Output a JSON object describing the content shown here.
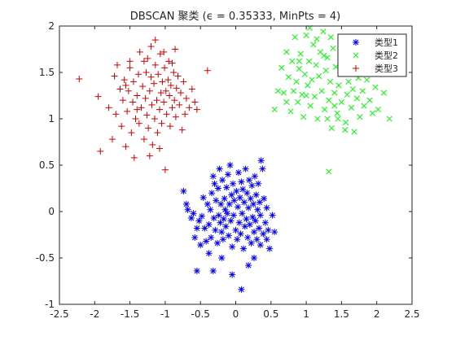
{
  "chart_data": {
    "type": "scatter",
    "title": "DBSCAN 聚类 (ϵ = 0.35333, MinPts = 4)",
    "xlabel": "",
    "ylabel": "",
    "xlim": [
      -2.5,
      2.5
    ],
    "ylim": [
      -1,
      2
    ],
    "xticks": [
      -2.5,
      -2,
      -1.5,
      -1,
      -0.5,
      0,
      0.5,
      1,
      1.5,
      2,
      2.5
    ],
    "xtick_labels": [
      "-2.5",
      "-2",
      "-1.5",
      "-1",
      "-0.5",
      "0",
      "0.5",
      "1",
      "1.5",
      "2",
      "2.5"
    ],
    "yticks": [
      -1,
      -0.5,
      0,
      0.5,
      1,
      1.5,
      2
    ],
    "ytick_labels": [
      "-1",
      "-0.5",
      "0",
      "0.5",
      "1",
      "1.5",
      "2"
    ],
    "grid": false,
    "legend_position": "top-right",
    "series": [
      {
        "name": "类型1",
        "marker": "asterisk",
        "color": "#0000ff",
        "points": [
          [
            -0.74,
            0.22
          ],
          [
            -0.7,
            0.08
          ],
          [
            -0.68,
            0.02
          ],
          [
            -0.63,
            -0.07
          ],
          [
            -0.6,
            -0.02
          ],
          [
            -0.58,
            -0.28
          ],
          [
            -0.55,
            -0.18
          ],
          [
            -0.52,
            -0.1
          ],
          [
            -0.5,
            -0.36
          ],
          [
            -0.48,
            -0.05
          ],
          [
            -0.46,
            0.15
          ],
          [
            -0.44,
            -0.18
          ],
          [
            -0.42,
            -0.32
          ],
          [
            -0.4,
            0.08
          ],
          [
            -0.38,
            -0.14
          ],
          [
            -0.36,
            0.02
          ],
          [
            -0.35,
            -0.28
          ],
          [
            -0.34,
            0.2
          ],
          [
            -0.32,
            0.38
          ],
          [
            -0.31,
            -0.07
          ],
          [
            -0.3,
            0.3
          ],
          [
            -0.29,
            -0.2
          ],
          [
            -0.28,
            0.12
          ],
          [
            -0.26,
            -0.34
          ],
          [
            -0.25,
            0.25
          ],
          [
            -0.24,
            -0.04
          ],
          [
            -0.23,
            0.46
          ],
          [
            -0.22,
            -0.12
          ],
          [
            -0.21,
            0.08
          ],
          [
            -0.2,
            -0.22
          ],
          [
            -0.19,
            0.34
          ],
          [
            -0.18,
            -0.3
          ],
          [
            -0.17,
            -0.08
          ],
          [
            -0.16,
            0.14
          ],
          [
            -0.15,
            0.02
          ],
          [
            -0.14,
            -0.16
          ],
          [
            -0.13,
            0.26
          ],
          [
            -0.12,
            -0.02
          ],
          [
            -0.11,
            0.4
          ],
          [
            -0.1,
            -0.26
          ],
          [
            -0.09,
            0.08
          ],
          [
            -0.08,
            0.5
          ],
          [
            -0.07,
            -0.1
          ],
          [
            -0.06,
            0.18
          ],
          [
            -0.05,
            -0.38
          ],
          [
            -0.04,
            0.3
          ],
          [
            -0.03,
            -0.04
          ],
          [
            -0.02,
            0.12
          ],
          [
            0.0,
            -0.2
          ],
          [
            0.01,
            0.22
          ],
          [
            0.02,
            -0.3
          ],
          [
            0.03,
            0.05
          ],
          [
            0.04,
            0.42
          ],
          [
            0.05,
            -0.12
          ],
          [
            0.06,
            0.15
          ],
          [
            0.07,
            -0.24
          ],
          [
            0.08,
            0.32
          ],
          [
            0.09,
            -0.02
          ],
          [
            0.1,
            0.24
          ],
          [
            0.11,
            -0.4
          ],
          [
            0.12,
            0.1
          ],
          [
            0.13,
            -0.16
          ],
          [
            0.14,
            0.46
          ],
          [
            0.15,
            -0.08
          ],
          [
            0.16,
            0.2
          ],
          [
            0.17,
            -0.28
          ],
          [
            0.18,
            0.04
          ],
          [
            0.19,
            0.34
          ],
          [
            0.2,
            -0.14
          ],
          [
            0.21,
            0.14
          ],
          [
            0.22,
            -0.34
          ],
          [
            0.23,
            0.28
          ],
          [
            0.24,
            -0.06
          ],
          [
            0.25,
            0.08
          ],
          [
            0.26,
            -0.22
          ],
          [
            0.27,
            0.38
          ],
          [
            0.28,
            -0.1
          ],
          [
            0.29,
            0.18
          ],
          [
            0.3,
            -0.3
          ],
          [
            0.31,
            0.02
          ],
          [
            0.32,
            0.3
          ],
          [
            0.33,
            -0.18
          ],
          [
            0.34,
            0.1
          ],
          [
            0.35,
            -0.04
          ],
          [
            0.36,
            0.55
          ],
          [
            0.38,
            0.46
          ],
          [
            0.39,
            -0.24
          ],
          [
            0.4,
            0.14
          ],
          [
            0.42,
            -0.12
          ],
          [
            0.44,
            0.04
          ],
          [
            0.46,
            -0.2
          ],
          [
            0.48,
            -0.4
          ],
          [
            0.52,
            -0.04
          ],
          [
            0.55,
            -0.22
          ],
          [
            -0.55,
            -0.64
          ],
          [
            -0.32,
            -0.64
          ],
          [
            -0.05,
            -0.68
          ],
          [
            0.18,
            -0.58
          ],
          [
            0.26,
            -0.5
          ],
          [
            0.08,
            -0.84
          ],
          [
            -0.38,
            -0.45
          ],
          [
            -0.2,
            -0.5
          ],
          [
            0.35,
            -0.36
          ],
          [
            0.44,
            -0.3
          ]
        ]
      },
      {
        "name": "类型2",
        "marker": "x",
        "color": "#00ff00",
        "points": [
          [
            0.55,
            1.1
          ],
          [
            0.65,
            1.55
          ],
          [
            0.68,
            1.28
          ],
          [
            0.72,
            1.72
          ],
          [
            0.75,
            1.45
          ],
          [
            0.78,
            1.08
          ],
          [
            0.8,
            1.62
          ],
          [
            0.82,
            1.3
          ],
          [
            0.84,
            1.88
          ],
          [
            0.86,
            1.4
          ],
          [
            0.88,
            1.18
          ],
          [
            0.9,
            1.54
          ],
          [
            0.92,
            1.7
          ],
          [
            0.94,
            1.26
          ],
          [
            0.96,
            1.02
          ],
          [
            0.98,
            1.48
          ],
          [
            1.0,
            1.9
          ],
          [
            1.02,
            1.36
          ],
          [
            1.04,
            1.62
          ],
          [
            1.06,
            1.14
          ],
          [
            1.08,
            1.42
          ],
          [
            1.1,
            1.8
          ],
          [
            1.12,
            1.24
          ],
          [
            1.14,
            1.58
          ],
          [
            1.16,
            1.0
          ],
          [
            1.18,
            1.46
          ],
          [
            1.2,
            1.72
          ],
          [
            1.22,
            1.3
          ],
          [
            1.24,
            1.94
          ],
          [
            1.26,
            1.1
          ],
          [
            1.28,
            1.52
          ],
          [
            1.3,
            1.66
          ],
          [
            1.32,
            1.2
          ],
          [
            1.34,
            1.4
          ],
          [
            1.36,
            0.9
          ],
          [
            1.38,
            1.76
          ],
          [
            1.4,
            1.28
          ],
          [
            1.42,
            1.56
          ],
          [
            1.44,
            1.06
          ],
          [
            1.46,
            1.36
          ],
          [
            1.48,
            1.84
          ],
          [
            1.5,
            1.18
          ],
          [
            1.52,
            1.48
          ],
          [
            1.54,
            1.62
          ],
          [
            1.56,
            0.96
          ],
          [
            1.58,
            1.26
          ],
          [
            1.6,
            1.4
          ],
          [
            1.62,
            1.7
          ],
          [
            1.64,
            1.12
          ],
          [
            1.66,
            1.32
          ],
          [
            1.68,
            0.86
          ],
          [
            1.7,
            1.54
          ],
          [
            1.72,
            1.22
          ],
          [
            1.74,
            1.44
          ],
          [
            1.76,
            1.02
          ],
          [
            1.78,
            1.6
          ],
          [
            1.8,
            1.3
          ],
          [
            1.82,
            1.14
          ],
          [
            1.86,
            1.42
          ],
          [
            1.9,
            1.2
          ],
          [
            1.94,
            1.06
          ],
          [
            1.98,
            1.34
          ],
          [
            2.02,
            1.1
          ],
          [
            2.1,
            1.28
          ],
          [
            2.18,
            1.0
          ],
          [
            1.32,
            0.43
          ],
          [
            0.9,
            1.62
          ],
          [
            1.05,
            1.98
          ],
          [
            1.45,
            1.0
          ],
          [
            1.55,
            0.88
          ],
          [
            1.15,
            1.86
          ],
          [
            1.25,
            1.68
          ],
          [
            1.35,
            1.88
          ],
          [
            1.65,
            1.6
          ],
          [
            1.72,
            1.7
          ],
          [
            0.72,
            1.18
          ],
          [
            1.0,
            1.25
          ],
          [
            1.3,
            1.0
          ],
          [
            1.58,
            1.8
          ],
          [
            1.78,
            1.48
          ],
          [
            0.6,
            1.3
          ],
          [
            1.4,
            1.14
          ]
        ]
      },
      {
        "name": "类型3",
        "marker": "plus",
        "color": "#cc0000",
        "points": [
          [
            -2.22,
            1.43
          ],
          [
            -1.95,
            1.24
          ],
          [
            -1.92,
            0.65
          ],
          [
            -1.8,
            1.12
          ],
          [
            -1.75,
            0.78
          ],
          [
            -1.72,
            1.46
          ],
          [
            -1.7,
            1.05
          ],
          [
            -1.68,
            1.58
          ],
          [
            -1.64,
            1.32
          ],
          [
            -1.62,
            0.92
          ],
          [
            -1.6,
            1.2
          ],
          [
            -1.58,
            1.42
          ],
          [
            -1.56,
            0.7
          ],
          [
            -1.54,
            1.08
          ],
          [
            -1.52,
            1.3
          ],
          [
            -1.5,
            1.55
          ],
          [
            -1.48,
            0.85
          ],
          [
            -1.46,
            1.18
          ],
          [
            -1.45,
            1.4
          ],
          [
            -1.44,
            0.58
          ],
          [
            -1.42,
            1.0
          ],
          [
            -1.4,
            1.25
          ],
          [
            -1.38,
            1.48
          ],
          [
            -1.37,
            0.95
          ],
          [
            -1.36,
            1.72
          ],
          [
            -1.34,
            1.12
          ],
          [
            -1.32,
            1.35
          ],
          [
            -1.3,
            0.78
          ],
          [
            -1.28,
            1.22
          ],
          [
            -1.27,
            1.5
          ],
          [
            -1.26,
            1.04
          ],
          [
            -1.25,
            1.65
          ],
          [
            -1.24,
            0.9
          ],
          [
            -1.22,
            1.3
          ],
          [
            -1.2,
            1.45
          ],
          [
            -1.19,
            1.15
          ],
          [
            -1.18,
            0.72
          ],
          [
            -1.16,
            1.38
          ],
          [
            -1.15,
            1.0
          ],
          [
            -1.14,
            1.58
          ],
          [
            -1.12,
            1.2
          ],
          [
            -1.11,
            0.85
          ],
          [
            -1.1,
            1.48
          ],
          [
            -1.08,
            1.1
          ],
          [
            -1.07,
            1.7
          ],
          [
            -1.06,
            1.28
          ],
          [
            -1.05,
            0.95
          ],
          [
            -1.04,
            1.4
          ],
          [
            -1.02,
            1.18
          ],
          [
            -1.01,
            1.55
          ],
          [
            -1.0,
            0.45
          ],
          [
            -0.99,
            1.3
          ],
          [
            -0.98,
            1.05
          ],
          [
            -0.96,
            1.42
          ],
          [
            -0.95,
            1.62
          ],
          [
            -0.94,
            1.25
          ],
          [
            -0.93,
            0.92
          ],
          [
            -0.92,
            1.36
          ],
          [
            -0.9,
            1.12
          ],
          [
            -0.88,
            1.5
          ],
          [
            -0.87,
            1.2
          ],
          [
            -0.86,
            1.75
          ],
          [
            -0.85,
            1.02
          ],
          [
            -0.84,
            1.33
          ],
          [
            -0.82,
            1.46
          ],
          [
            -0.8,
            1.15
          ],
          [
            -0.78,
            1.28
          ],
          [
            -0.76,
            0.88
          ],
          [
            -0.74,
            1.4
          ],
          [
            -0.72,
            1.05
          ],
          [
            -0.7,
            1.22
          ],
          [
            -0.66,
            1.12
          ],
          [
            -0.62,
            1.32
          ],
          [
            -0.58,
            1.18
          ],
          [
            -0.55,
            1.1
          ],
          [
            -0.4,
            1.52
          ],
          [
            -1.14,
            1.85
          ],
          [
            -1.2,
            1.78
          ],
          [
            -1.02,
            1.72
          ],
          [
            -1.5,
            1.62
          ],
          [
            -1.3,
            1.62
          ],
          [
            -1.4,
            1.1
          ],
          [
            -1.22,
            0.6
          ],
          [
            -1.56,
            1.36
          ],
          [
            -1.08,
            0.68
          ],
          [
            -0.9,
            1.6
          ]
        ]
      }
    ]
  }
}
